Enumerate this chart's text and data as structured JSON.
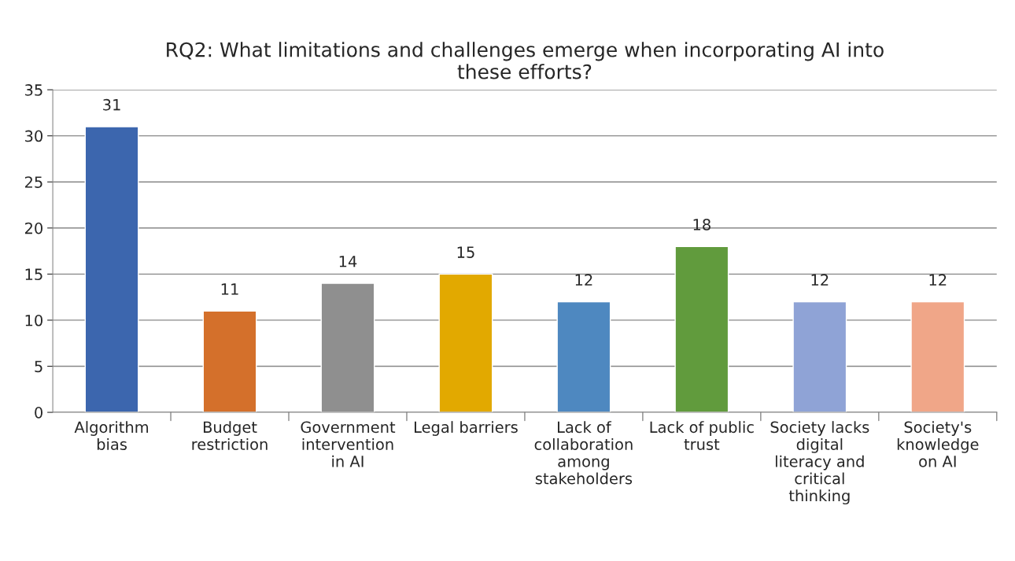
{
  "chart_data": {
    "type": "bar",
    "title": "RQ2: What limitations and challenges emerge when incorporating AI into\nthese efforts?",
    "categories": [
      "Algorithm\nbias",
      "Budget\nrestriction",
      "Government\nintervention\nin AI",
      "Legal barriers",
      "Lack of\ncollaboration\namong\nstakeholders",
      "Lack of public\ntrust",
      "Society lacks\ndigital\nliteracy and\ncritical\nthinking",
      "Society's\nknowledge\non AI"
    ],
    "values": [
      31,
      11,
      14,
      15,
      12,
      18,
      12,
      12
    ],
    "colors": [
      "#3c66ae",
      "#d4702b",
      "#8f8f8f",
      "#e2a900",
      "#4e88c0",
      "#619b3d",
      "#8fa3d6",
      "#f0a688"
    ],
    "ylim": [
      0,
      35
    ],
    "yticks": [
      0,
      5,
      10,
      15,
      20,
      25,
      30,
      35
    ],
    "grid": "y",
    "data_labels": true
  }
}
